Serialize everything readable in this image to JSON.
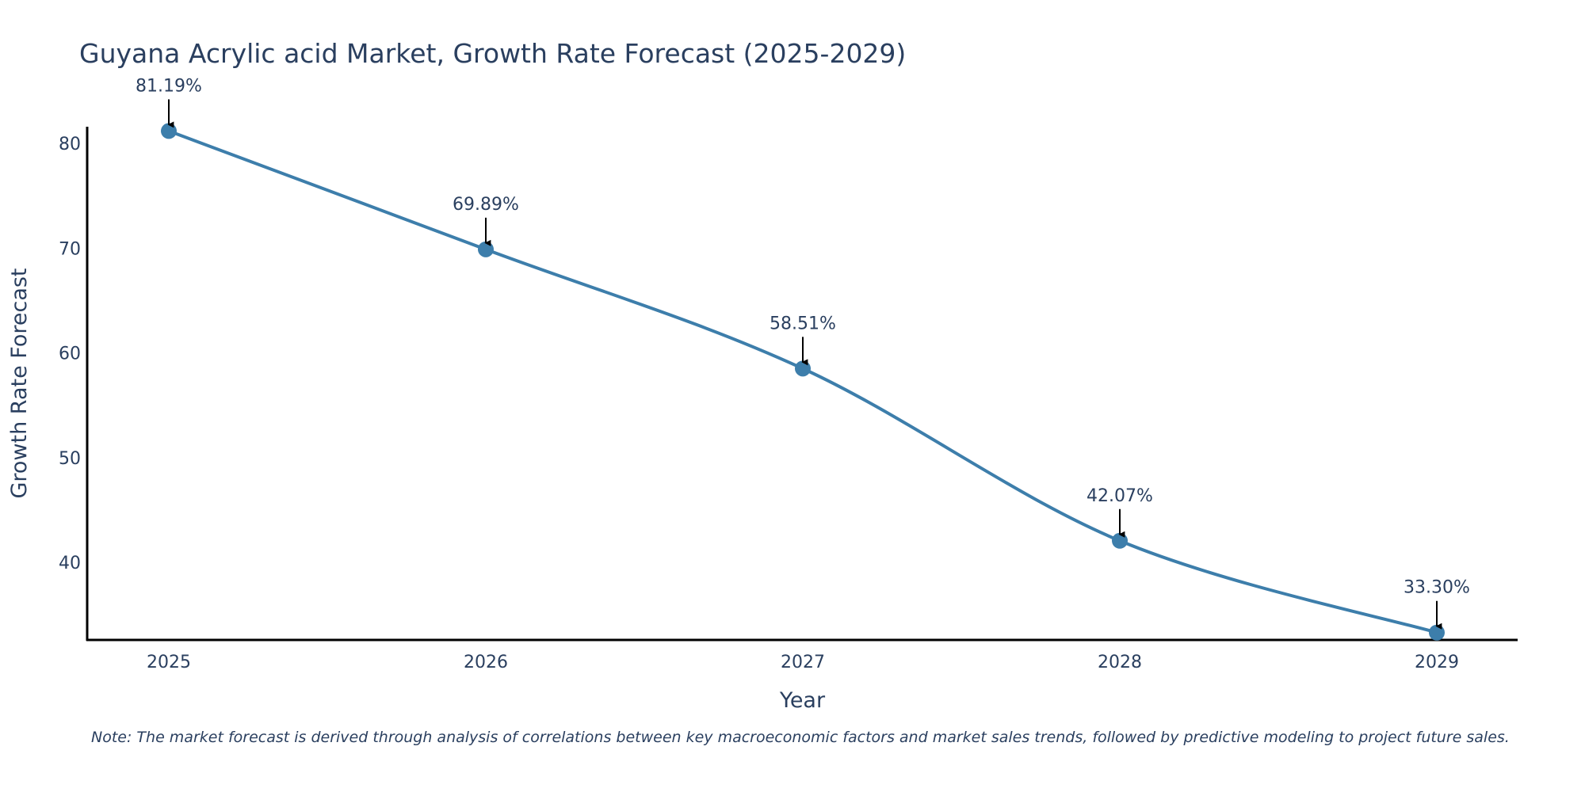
{
  "chart_data": {
    "type": "line",
    "title": "Guyana Acrylic acid Market, Growth Rate Forecast (2025-2029)",
    "xlabel": "Year",
    "ylabel": "Growth Rate Forecast",
    "categories": [
      "2025",
      "2026",
      "2027",
      "2028",
      "2029"
    ],
    "values": [
      81.19,
      69.89,
      58.51,
      42.07,
      33.3
    ],
    "data_labels": [
      "81.19%",
      "69.89%",
      "58.51%",
      "42.07%",
      "33.30%"
    ],
    "yticks": [
      40,
      50,
      60,
      70,
      80
    ],
    "ytick_labels": [
      "40",
      "50",
      "60",
      "70",
      "80"
    ],
    "ylim": [
      32.6,
      81.6
    ],
    "line_color": "#3d7eab",
    "grid": false,
    "note": "Note: The market forecast is derived through analysis of correlations between key macroeconomic factors and market sales trends, followed by predictive modeling to project future sales."
  }
}
